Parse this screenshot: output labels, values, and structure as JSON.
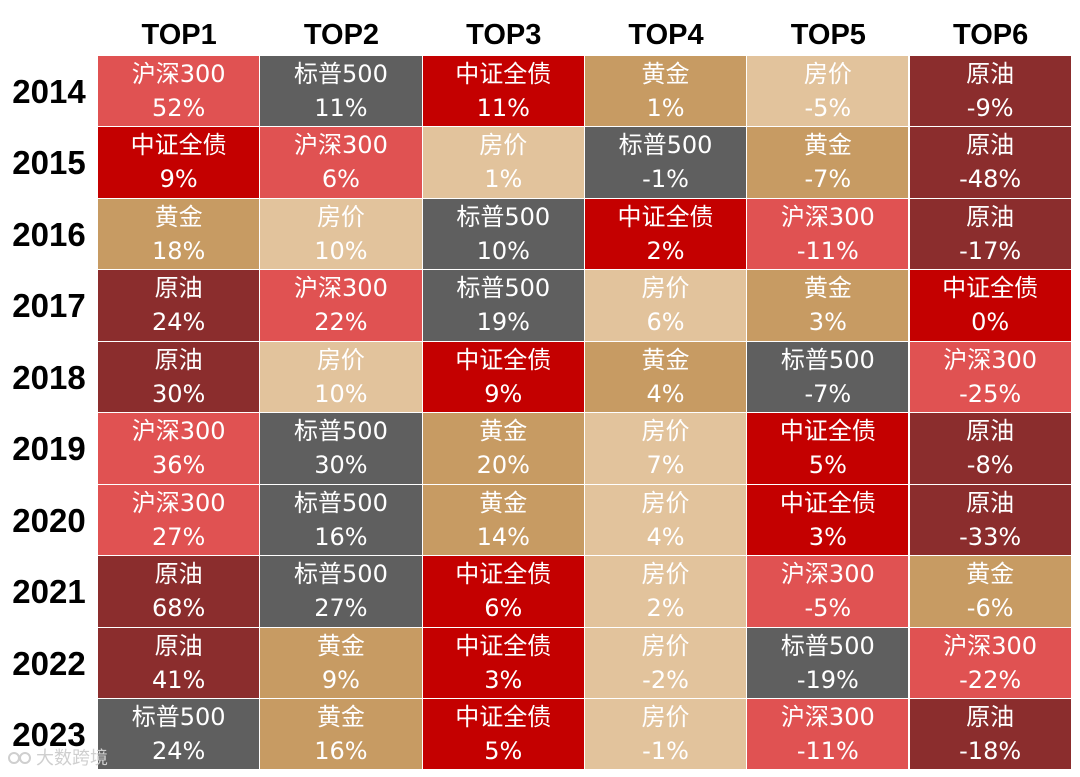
{
  "chart_data": {
    "type": "table",
    "columns": [
      "TOP1",
      "TOP2",
      "TOP3",
      "TOP4",
      "TOP5",
      "TOP6"
    ],
    "colors": {
      "沪深300": "#e05252",
      "标普500": "#5f5f5f",
      "中证全债": "#c40000",
      "黄金": "#c79b63",
      "房价": "#e2c39c",
      "原油": "#8b2d2d"
    },
    "rows": [
      {
        "year": "2014",
        "cells": [
          {
            "asset": "沪深300",
            "value": "52%"
          },
          {
            "asset": "标普500",
            "value": "11%"
          },
          {
            "asset": "中证全债",
            "value": "11%"
          },
          {
            "asset": "黄金",
            "value": "1%"
          },
          {
            "asset": "房价",
            "value": "-5%"
          },
          {
            "asset": "原油",
            "value": "-9%"
          }
        ]
      },
      {
        "year": "2015",
        "cells": [
          {
            "asset": "中证全债",
            "value": "9%"
          },
          {
            "asset": "沪深300",
            "value": "6%"
          },
          {
            "asset": "房价",
            "value": "1%"
          },
          {
            "asset": "标普500",
            "value": "-1%"
          },
          {
            "asset": "黄金",
            "value": "-7%"
          },
          {
            "asset": "原油",
            "value": "-48%"
          }
        ]
      },
      {
        "year": "2016",
        "cells": [
          {
            "asset": "黄金",
            "value": "18%"
          },
          {
            "asset": "房价",
            "value": "10%"
          },
          {
            "asset": "标普500",
            "value": "10%"
          },
          {
            "asset": "中证全债",
            "value": "2%"
          },
          {
            "asset": "沪深300",
            "value": "-11%"
          },
          {
            "asset": "原油",
            "value": "-17%"
          }
        ]
      },
      {
        "year": "2017",
        "cells": [
          {
            "asset": "原油",
            "value": "24%"
          },
          {
            "asset": "沪深300",
            "value": "22%"
          },
          {
            "asset": "标普500",
            "value": "19%"
          },
          {
            "asset": "房价",
            "value": "6%"
          },
          {
            "asset": "黄金",
            "value": "3%"
          },
          {
            "asset": "中证全债",
            "value": "0%"
          }
        ]
      },
      {
        "year": "2018",
        "cells": [
          {
            "asset": "原油",
            "value": "30%"
          },
          {
            "asset": "房价",
            "value": "10%"
          },
          {
            "asset": "中证全债",
            "value": "9%"
          },
          {
            "asset": "黄金",
            "value": "4%"
          },
          {
            "asset": "标普500",
            "value": "-7%"
          },
          {
            "asset": "沪深300",
            "value": "-25%"
          }
        ]
      },
      {
        "year": "2019",
        "cells": [
          {
            "asset": "沪深300",
            "value": "36%"
          },
          {
            "asset": "标普500",
            "value": "30%"
          },
          {
            "asset": "黄金",
            "value": "20%"
          },
          {
            "asset": "房价",
            "value": "7%"
          },
          {
            "asset": "中证全债",
            "value": "5%"
          },
          {
            "asset": "原油",
            "value": "-8%"
          }
        ]
      },
      {
        "year": "2020",
        "cells": [
          {
            "asset": "沪深300",
            "value": "27%"
          },
          {
            "asset": "标普500",
            "value": "16%"
          },
          {
            "asset": "黄金",
            "value": "14%"
          },
          {
            "asset": "房价",
            "value": "4%"
          },
          {
            "asset": "中证全债",
            "value": "3%"
          },
          {
            "asset": "原油",
            "value": "-33%"
          }
        ]
      },
      {
        "year": "2021",
        "cells": [
          {
            "asset": "原油",
            "value": "68%"
          },
          {
            "asset": "标普500",
            "value": "27%"
          },
          {
            "asset": "中证全债",
            "value": "6%"
          },
          {
            "asset": "房价",
            "value": "2%"
          },
          {
            "asset": "沪深300",
            "value": "-5%"
          },
          {
            "asset": "黄金",
            "value": "-6%"
          }
        ]
      },
      {
        "year": "2022",
        "cells": [
          {
            "asset": "原油",
            "value": "41%"
          },
          {
            "asset": "黄金",
            "value": "9%"
          },
          {
            "asset": "中证全债",
            "value": "3%"
          },
          {
            "asset": "房价",
            "value": "-2%"
          },
          {
            "asset": "标普500",
            "value": "-19%"
          },
          {
            "asset": "沪深300",
            "value": "-22%"
          }
        ]
      },
      {
        "year": "2023",
        "cells": [
          {
            "asset": "标普500",
            "value": "24%"
          },
          {
            "asset": "黄金",
            "value": "16%"
          },
          {
            "asset": "中证全债",
            "value": "5%"
          },
          {
            "asset": "房价",
            "value": "-1%"
          },
          {
            "asset": "沪深300",
            "value": "-11%"
          },
          {
            "asset": "原油",
            "value": "-18%"
          }
        ]
      }
    ]
  },
  "watermark": {
    "text": "大数跨境",
    "icon": "brand-logo-icon"
  }
}
